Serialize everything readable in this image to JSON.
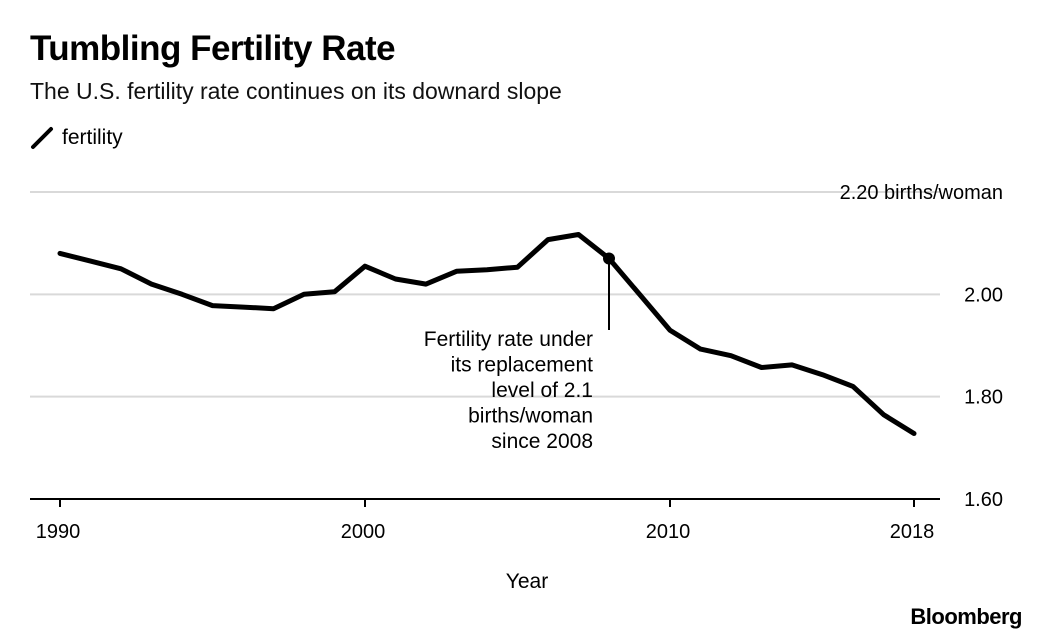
{
  "header": {
    "title": "Tumbling Fertility Rate",
    "subtitle": "The U.S. fertility rate continues on its downard slope"
  },
  "legend": {
    "label": "fertility"
  },
  "footer": {
    "brand": "Bloomberg"
  },
  "colors": {
    "line": "#000000",
    "grid": "#d9d9d9",
    "axis": "#000000"
  },
  "chart_data": {
    "type": "line",
    "title": "Tumbling Fertility Rate",
    "subtitle": "The U.S. fertility rate continues on its downard slope",
    "xlabel": "Year",
    "ylabel": "",
    "xlim": [
      1990,
      2018
    ],
    "ylim": [
      1.6,
      2.2
    ],
    "grid": true,
    "legend_position": "top-left",
    "x_ticks": [
      {
        "value": 1990,
        "label": "1990"
      },
      {
        "value": 2000,
        "label": "2000"
      },
      {
        "value": 2010,
        "label": "2010"
      },
      {
        "value": 2018,
        "label": "2018"
      }
    ],
    "y_ticks": [
      {
        "value": 1.6,
        "label": "1.60"
      },
      {
        "value": 1.8,
        "label": "1.80"
      },
      {
        "value": 2.0,
        "label": "2.00"
      },
      {
        "value": 2.2,
        "label": "2.20 births/woman"
      }
    ],
    "series": [
      {
        "name": "fertility",
        "x": [
          1990,
          1991,
          1992,
          1993,
          1994,
          1995,
          1996,
          1997,
          1998,
          1999,
          2000,
          2001,
          2002,
          2003,
          2004,
          2005,
          2006,
          2007,
          2008,
          2009,
          2010,
          2011,
          2012,
          2013,
          2014,
          2015,
          2016,
          2017,
          2018
        ],
        "y": [
          2.08,
          2.065,
          2.05,
          2.02,
          2.0,
          1.978,
          1.975,
          1.972,
          2.0,
          2.005,
          2.055,
          2.03,
          2.02,
          2.045,
          2.048,
          2.053,
          2.107,
          2.117,
          2.07,
          2.0,
          1.93,
          1.893,
          1.88,
          1.857,
          1.862,
          1.843,
          1.82,
          1.765,
          1.728
        ]
      }
    ],
    "annotations": [
      {
        "x": 2008,
        "y": 2.07,
        "lines": [
          "Fertility rate under",
          "its replacement",
          "level of 2.1",
          "births/woman",
          "since 2008"
        ]
      }
    ]
  }
}
